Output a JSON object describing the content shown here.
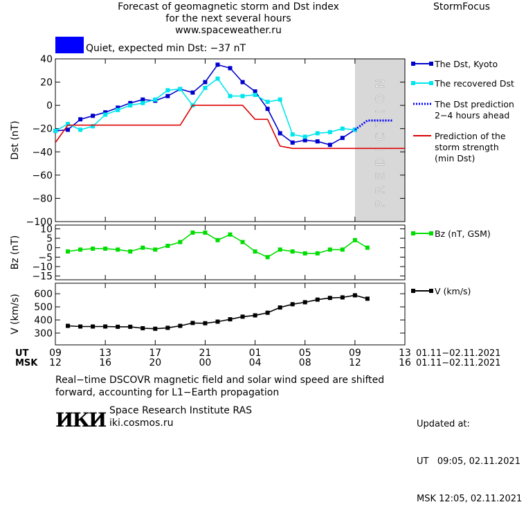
{
  "header": {
    "title_lines": [
      "Forecast of geomagnetic storm and Dst index",
      "for the next several hours",
      "www.spaceweather.ru"
    ],
    "brand": "StormFocus",
    "status": "Quiet, expected min Dst: −37 nT",
    "status_color": "#0000ff"
  },
  "footer": {
    "note_lines": [
      "Real−time DSCOVR magnetic field and solar wind speed are shifted",
      "forward, accounting for L1−Earth propagation"
    ],
    "logo": "ИКИ",
    "institute": "Space Research Institute RAS",
    "site": "iki.cosmos.ru",
    "updated_label": "Updated at:",
    "updated_ut": "UT   09:05, 02.11.2021",
    "updated_msk": "MSK 12:05, 02.11.2021"
  },
  "chart_data": {
    "type": "line",
    "x_unit": "hours since 01.11.2021 09:00 UT",
    "x_ticks": [
      0,
      4,
      8,
      12,
      16,
      20,
      24,
      28
    ],
    "ut_label": "UT",
    "msk_label": "MSK",
    "ut_ticks": [
      "09",
      "13",
      "17",
      "21",
      "01",
      "05",
      "09",
      "13"
    ],
    "msk_ticks": [
      "12",
      "16",
      "20",
      "00",
      "04",
      "08",
      "12",
      "16"
    ],
    "date_range_ut": "01.11−02.11.2021",
    "date_range_msk": "01.11−02.11.2021",
    "prediction_label": "PREDICTION",
    "prediction_start": 24,
    "panels": [
      {
        "ylabel": "Dst (nT)",
        "ylim": [
          -100,
          40
        ],
        "yticks": [
          40,
          20,
          0,
          -20,
          -40,
          -60,
          -80,
          -100
        ],
        "series": [
          {
            "name": "The Dst, Kyoto",
            "color": "#0000cc",
            "style": "line-square",
            "x": [
              0,
              1,
              2,
              3,
              4,
              5,
              6,
              7,
              8,
              9,
              10,
              11,
              12,
              13,
              14,
              15,
              16,
              17,
              18,
              19,
              20,
              21,
              22,
              23,
              24
            ],
            "y": [
              -22,
              -21,
              -12,
              -9,
              -6,
              -2,
              2,
              5,
              4,
              8,
              14,
              11,
              20,
              35,
              32,
              20,
              12,
              -3,
              -24,
              -32,
              -30,
              -31,
              -34,
              -28,
              -21
            ]
          },
          {
            "name": "The recovered Dst",
            "color": "#00e5ee",
            "style": "line-square",
            "x": [
              0,
              1,
              2,
              3,
              4,
              5,
              6,
              7,
              8,
              9,
              10,
              11,
              12,
              13,
              14,
              15,
              16,
              17,
              18,
              19,
              20,
              21,
              22,
              23,
              24
            ],
            "y": [
              -22,
              -16,
              -21,
              -18,
              -8,
              -4,
              0,
              2,
              5,
              13,
              14,
              0,
              15,
              23,
              8,
              8,
              9,
              3,
              5,
              -25,
              -27,
              -24,
              -23,
              -20,
              -21
            ]
          },
          {
            "name": "The Dst prediction\n2−4 hours ahead",
            "color": "#0000ff",
            "style": "dotted",
            "x": [
              24,
              25,
              26,
              27
            ],
            "y": [
              -21,
              -13,
              -13,
              -13
            ]
          },
          {
            "name": "Prediction of the\nstorm strength\n(min Dst)",
            "color": "#dd0000",
            "style": "line",
            "x": [
              0,
              1,
              10,
              11,
              15,
              16,
              17,
              18,
              19,
              28
            ],
            "y": [
              -32,
              -17,
              -17,
              0,
              0,
              -12,
              -12,
              -35,
              -37,
              -37
            ]
          }
        ]
      },
      {
        "ylabel": "Bz (nT)",
        "ylim": [
          -17,
          12
        ],
        "yticks": [
          10,
          5,
          0,
          -5,
          -10,
          -15
        ],
        "series": [
          {
            "name": "Bz (nT, GSM)",
            "color": "#00dd00",
            "style": "line-square",
            "x": [
              1,
              2,
              3,
              4,
              5,
              6,
              7,
              8,
              9,
              10,
              11,
              12,
              13,
              14,
              15,
              16,
              17,
              18,
              19,
              20,
              21,
              22,
              23,
              24,
              25
            ],
            "y": [
              -2,
              -1,
              -0.5,
              -0.5,
              -1,
              -2,
              0,
              -1,
              1,
              3,
              8,
              8,
              4,
              7,
              3,
              -2,
              -5,
              -1,
              -2,
              -3,
              -3,
              -1,
              -1,
              4,
              0
            ]
          }
        ]
      },
      {
        "ylabel": "V (km/s)",
        "ylim": [
          210,
          680
        ],
        "yticks": [
          600,
          500,
          400,
          300
        ],
        "series": [
          {
            "name": "V (km/s)",
            "color": "#000000",
            "style": "line-square",
            "x": [
              1,
              2,
              3,
              4,
              5,
              6,
              7,
              8,
              9,
              10,
              11,
              12,
              13,
              14,
              15,
              16,
              17,
              18,
              19,
              20,
              21,
              22,
              23,
              24,
              25
            ],
            "y": [
              355,
              350,
              350,
              350,
              348,
              348,
              337,
              333,
              340,
              355,
              377,
              375,
              387,
              405,
              425,
              435,
              455,
              495,
              520,
              535,
              555,
              568,
              572,
              588,
              562
            ]
          }
        ]
      }
    ]
  }
}
